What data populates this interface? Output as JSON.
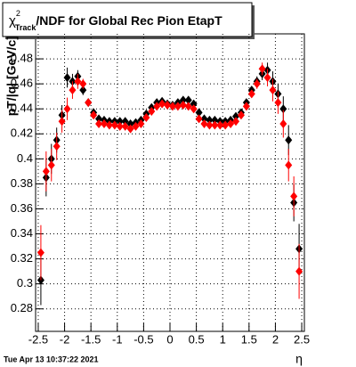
{
  "chart_data": {
    "type": "scatter",
    "title_symbol": "χ",
    "title_superscript": "2",
    "title_subscript": "Track",
    "title_rest": "/NDF for Global Rec Pion EtapT",
    "x_label": "η",
    "y_label": "pT/|q| [GeV/c]",
    "footer": "Tue Apr 13 10:37:22 2021",
    "x": [
      -2.45,
      -2.35,
      -2.25,
      -2.15,
      -2.05,
      -1.95,
      -1.85,
      -1.75,
      -1.65,
      -1.55,
      -1.45,
      -1.35,
      -1.25,
      -1.15,
      -1.05,
      -0.95,
      -0.85,
      -0.75,
      -0.65,
      -0.55,
      -0.45,
      -0.35,
      -0.25,
      -0.15,
      -0.05,
      0.05,
      0.15,
      0.25,
      0.35,
      0.45,
      0.55,
      0.65,
      0.75,
      0.85,
      0.95,
      1.05,
      1.15,
      1.25,
      1.35,
      1.45,
      1.55,
      1.65,
      1.75,
      1.85,
      1.95,
      2.05,
      2.15,
      2.25,
      2.35,
      2.45
    ],
    "series": [
      {
        "color": "#000000",
        "values": [
          0.303,
          0.385,
          0.4,
          0.415,
          0.435,
          0.465,
          0.462,
          0.466,
          0.455,
          0.445,
          0.437,
          0.432,
          0.431,
          0.43,
          0.43,
          0.43,
          0.43,
          0.428,
          0.429,
          0.431,
          0.436,
          0.441,
          0.445,
          0.446,
          0.444,
          0.443,
          0.445,
          0.447,
          0.447,
          0.444,
          0.437,
          0.432,
          0.431,
          0.431,
          0.43,
          0.43,
          0.431,
          0.434,
          0.437,
          0.445,
          0.455,
          0.462,
          0.468,
          0.471,
          0.462,
          0.452,
          0.44,
          0.415,
          0.365,
          0.328
        ],
        "errors": [
          0.02,
          0.015,
          0.012,
          0.01,
          0.008,
          0.008,
          0.006,
          0.005,
          0.004,
          0.003,
          0.002,
          0.002,
          0.002,
          0.002,
          0.002,
          0.002,
          0.002,
          0.002,
          0.002,
          0.002,
          0.002,
          0.002,
          0.002,
          0.002,
          0.002,
          0.002,
          0.002,
          0.002,
          0.002,
          0.002,
          0.002,
          0.002,
          0.002,
          0.002,
          0.002,
          0.002,
          0.002,
          0.002,
          0.002,
          0.002,
          0.003,
          0.004,
          0.005,
          0.006,
          0.008,
          0.008,
          0.01,
          0.012,
          0.015,
          0.02
        ]
      },
      {
        "color": "#ff0000",
        "values": [
          0.325,
          0.39,
          0.395,
          0.41,
          0.43,
          0.44,
          0.455,
          0.462,
          0.46,
          0.445,
          0.435,
          0.428,
          0.428,
          0.427,
          0.427,
          0.426,
          0.426,
          0.424,
          0.426,
          0.428,
          0.433,
          0.438,
          0.442,
          0.444,
          0.443,
          0.442,
          0.442,
          0.443,
          0.442,
          0.44,
          0.432,
          0.428,
          0.427,
          0.427,
          0.427,
          0.427,
          0.428,
          0.43,
          0.435,
          0.442,
          0.452,
          0.46,
          0.472,
          0.465,
          0.455,
          0.445,
          0.428,
          0.395,
          0.37,
          0.31
        ],
        "errors": [
          0.022,
          0.016,
          0.013,
          0.011,
          0.009,
          0.009,
          0.007,
          0.006,
          0.004,
          0.003,
          0.002,
          0.002,
          0.002,
          0.002,
          0.002,
          0.002,
          0.002,
          0.002,
          0.002,
          0.002,
          0.002,
          0.002,
          0.002,
          0.002,
          0.002,
          0.002,
          0.002,
          0.002,
          0.002,
          0.002,
          0.002,
          0.002,
          0.002,
          0.002,
          0.002,
          0.002,
          0.002,
          0.002,
          0.002,
          0.002,
          0.003,
          0.004,
          0.005,
          0.007,
          0.009,
          0.009,
          0.011,
          0.013,
          0.016,
          0.022
        ]
      }
    ],
    "xlim": [
      -2.55,
      2.55
    ],
    "ylim": [
      0.262,
      0.5
    ],
    "xticks": [
      -2.5,
      -2,
      -1.5,
      -1,
      -0.5,
      0,
      0.5,
      1,
      1.5,
      2,
      2.5
    ],
    "yticks": [
      0.28,
      0.3,
      0.32,
      0.34,
      0.36,
      0.38,
      0.4,
      0.42,
      0.44,
      0.46,
      0.48
    ],
    "grid": true
  }
}
